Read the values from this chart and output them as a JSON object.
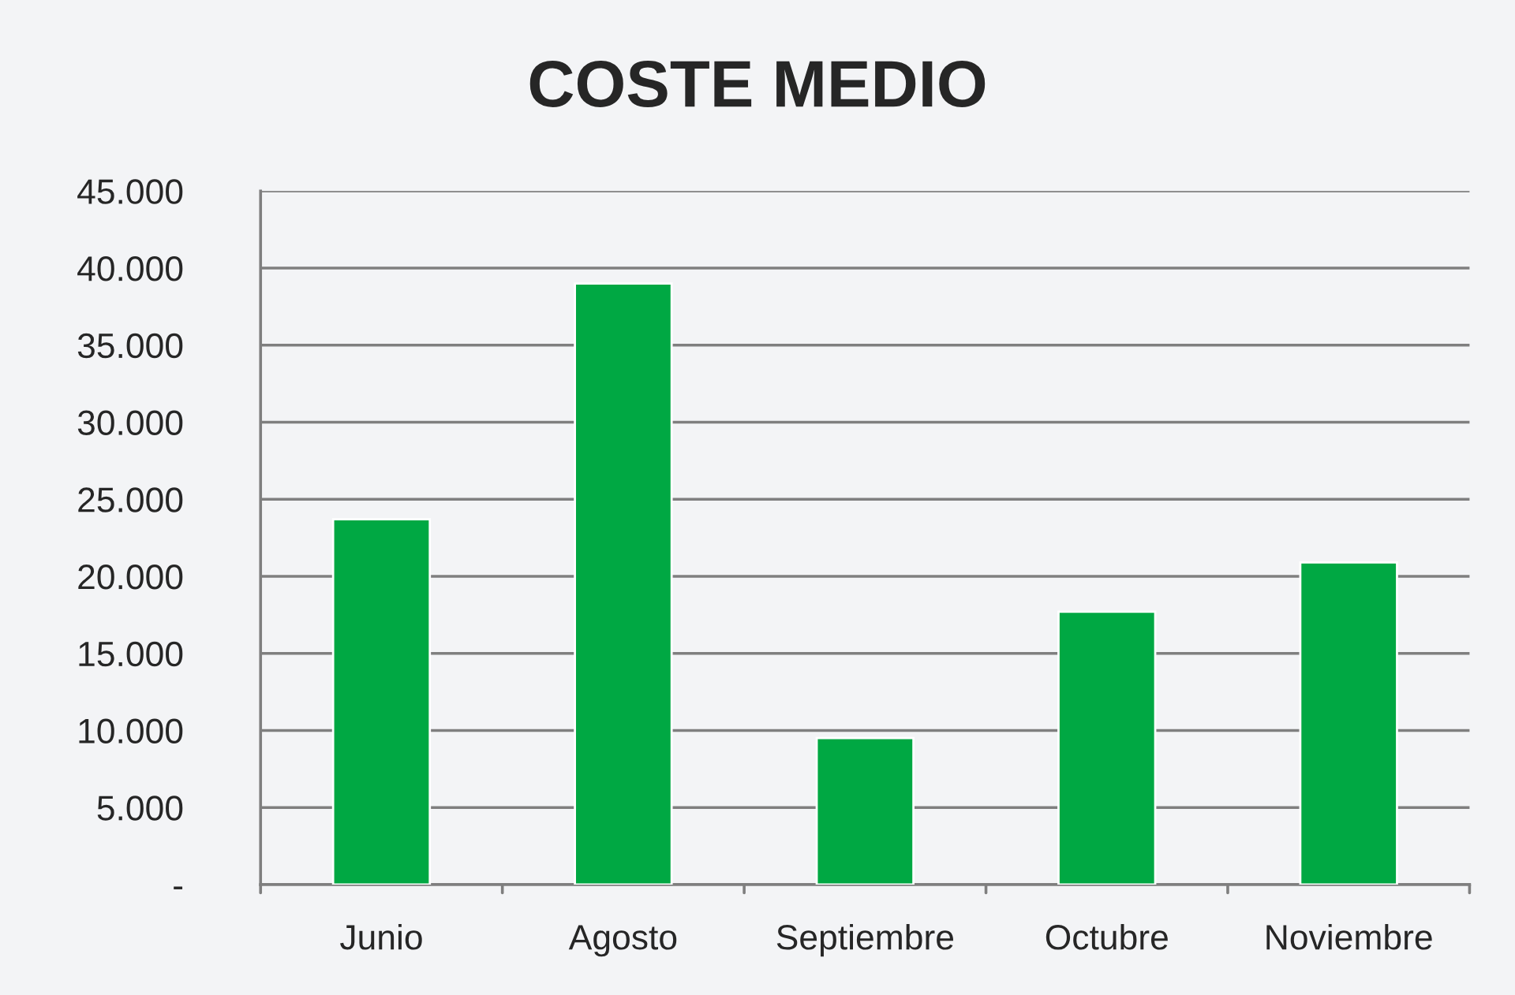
{
  "chart_data": {
    "type": "bar",
    "title": "COSTE MEDIO",
    "categories": [
      "Junio",
      "Agosto",
      "Septiembre",
      "Octubre",
      "Noviembre"
    ],
    "values": [
      23700,
      39000,
      9500,
      17700,
      20900
    ],
    "color": "#00a843",
    "ylim": [
      0,
      45000
    ],
    "yticks": [
      {
        "value": 0,
        "label": "-"
      },
      {
        "value": 5000,
        "label": "5.000"
      },
      {
        "value": 10000,
        "label": "10.000"
      },
      {
        "value": 15000,
        "label": "15.000"
      },
      {
        "value": 20000,
        "label": "20.000"
      },
      {
        "value": 25000,
        "label": "25.000"
      },
      {
        "value": 30000,
        "label": "30.000"
      },
      {
        "value": 35000,
        "label": "35.000"
      },
      {
        "value": 40000,
        "label": "40.000"
      },
      {
        "value": 45000,
        "label": "45.000"
      }
    ],
    "grid": "y",
    "legend": false
  }
}
